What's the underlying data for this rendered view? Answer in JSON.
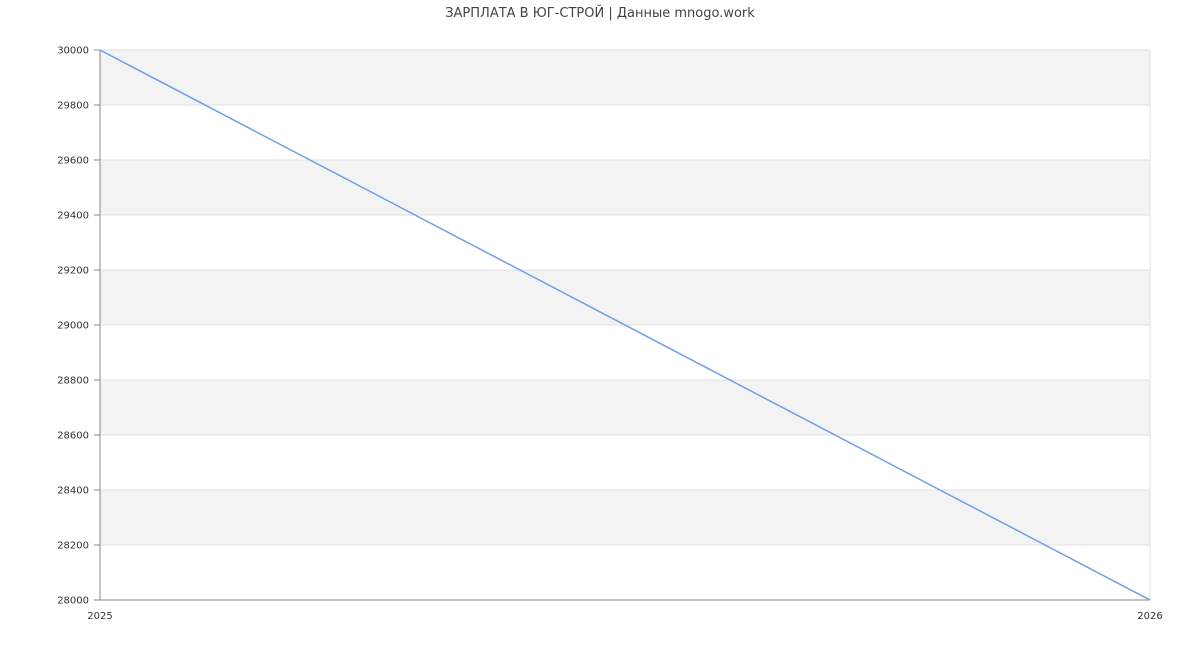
{
  "chart_data": {
    "type": "line",
    "title": "ЗАРПЛАТА В ЮГ-СТРОЙ | Данные mnogo.work",
    "xlabel": "",
    "ylabel": "",
    "x": [
      "2025",
      "2026"
    ],
    "series": [
      {
        "values": [
          30000,
          28000
        ]
      }
    ],
    "ylim": [
      28000,
      30000
    ],
    "yticks": [
      28000,
      28200,
      28400,
      28600,
      28800,
      29000,
      29200,
      29400,
      29600,
      29800,
      30000
    ],
    "grid": true,
    "banded_background": true,
    "colors": {
      "line": "#6d9eeb",
      "band": "#f3f3f3",
      "grid": "#e0e0e0",
      "axis": "#888888"
    }
  }
}
